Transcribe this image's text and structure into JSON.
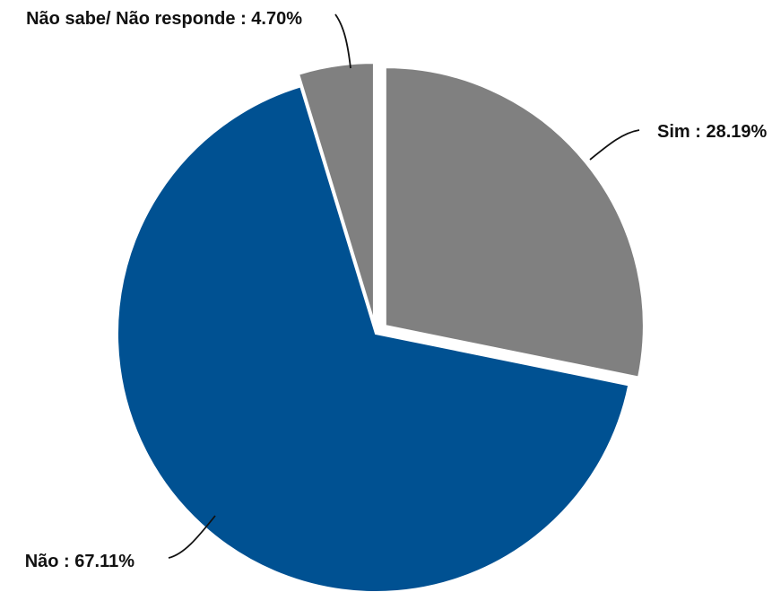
{
  "chart_data": {
    "type": "pie",
    "title": "",
    "slices": [
      {
        "label": "Sim",
        "value": 28.19,
        "display": "Sim : 28.19%",
        "color": "#808080",
        "exploded": true
      },
      {
        "label": "Não",
        "value": 67.11,
        "display": "Não : 67.11%",
        "color": "#005192",
        "exploded": false
      },
      {
        "label": "Não sabe/ Não responde",
        "value": 4.7,
        "display": "Não sabe/ Não responde : 4.70%",
        "color": "#808080",
        "exploded": true
      }
    ],
    "start_angle_deg": 0,
    "direction": "clockwise",
    "legend": "none"
  }
}
